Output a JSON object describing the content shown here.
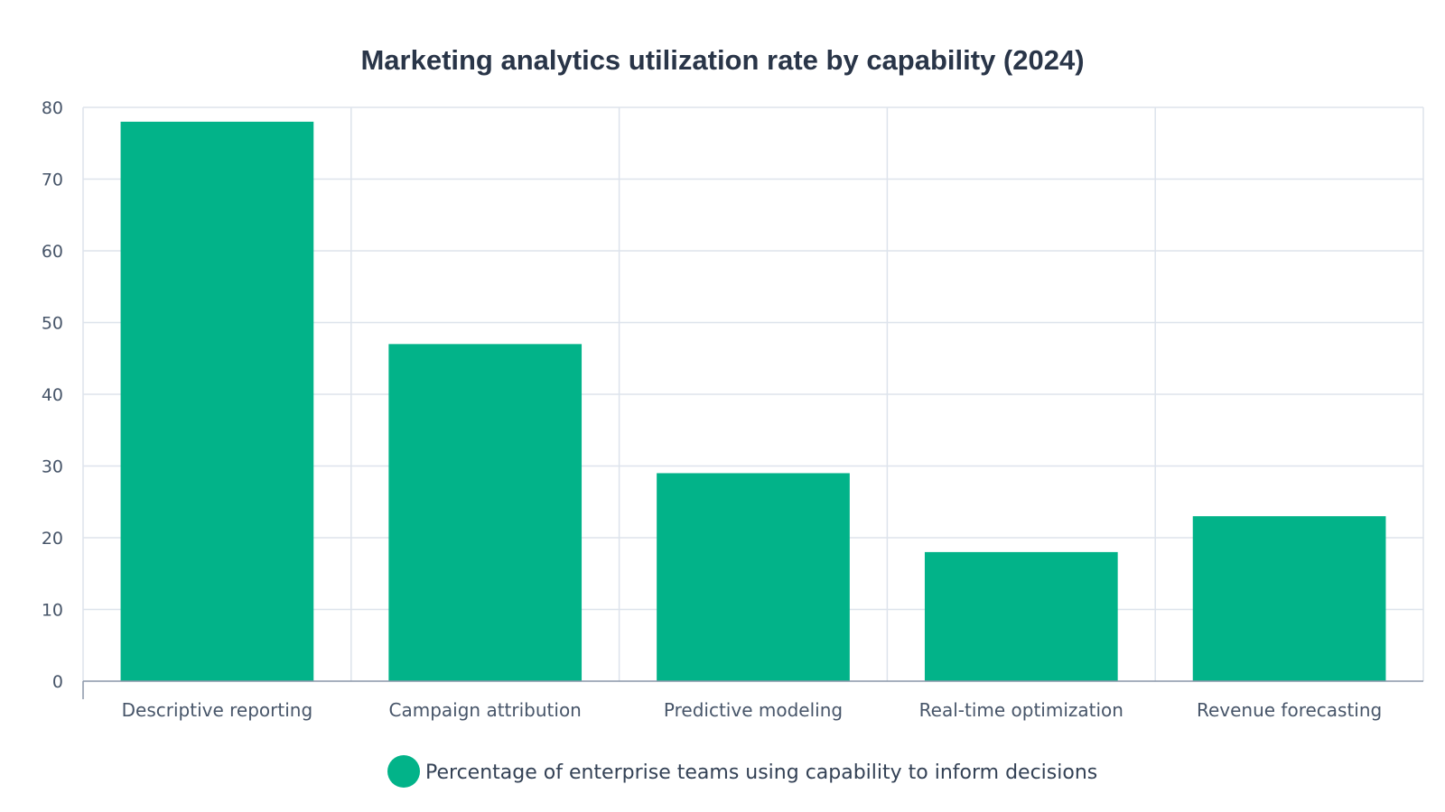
{
  "chart_data": {
    "type": "bar",
    "title": "Marketing analytics utilization rate by capability (2024)",
    "xlabel": "",
    "ylabel": "",
    "categories": [
      "Descriptive reporting",
      "Campaign attribution",
      "Predictive modeling",
      "Real-time optimization",
      "Revenue forecasting"
    ],
    "series": [
      {
        "name": "Percentage of enterprise teams using capability to inform decisions",
        "values": [
          78,
          47,
          29,
          18,
          23
        ],
        "color": "#02b389"
      }
    ],
    "ylim": [
      0,
      80
    ],
    "yticks": [
      0,
      10,
      20,
      30,
      40,
      50,
      60,
      70,
      80
    ],
    "grid": true,
    "legend_position": "bottom-center"
  }
}
